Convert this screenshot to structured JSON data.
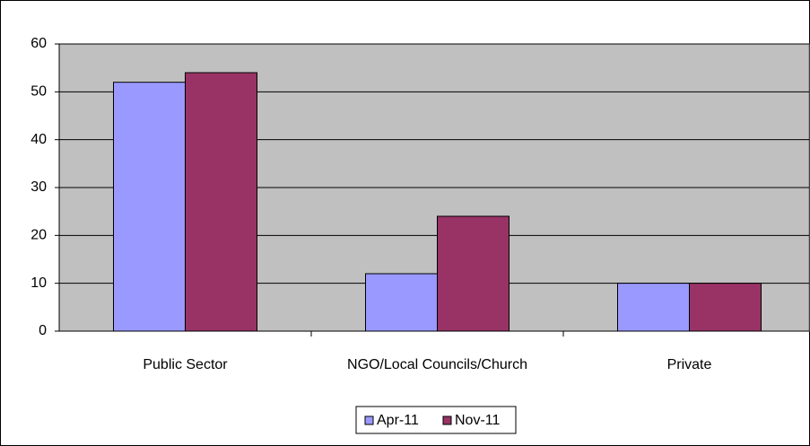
{
  "chart_data": {
    "type": "bar",
    "categories": [
      "Public Sector",
      "NGO/Local Councils/Church",
      "Private"
    ],
    "series": [
      {
        "name": "Apr-11",
        "color": "#9999ff",
        "values": [
          52,
          12,
          10
        ]
      },
      {
        "name": "Nov-11",
        "color": "#993366",
        "values": [
          54,
          24,
          10
        ]
      }
    ],
    "ylim": [
      0,
      60
    ],
    "yticks": [
      0,
      10,
      20,
      30,
      40,
      50,
      60
    ],
    "grid": true,
    "legend": "bottom"
  }
}
